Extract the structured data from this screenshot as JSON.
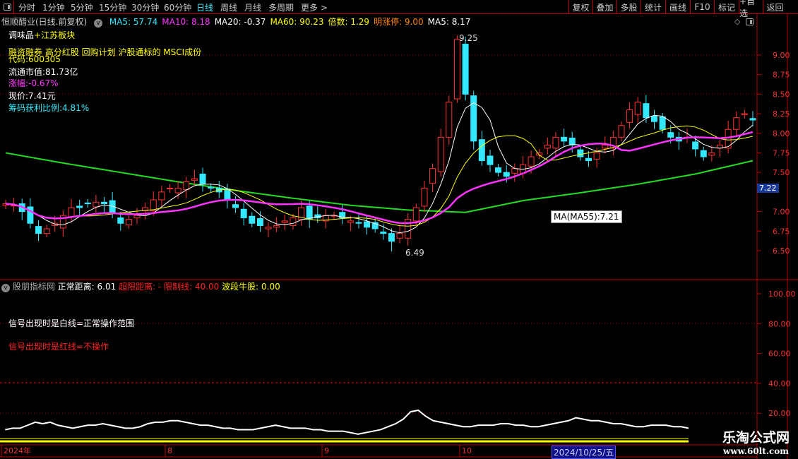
{
  "toolbar": {
    "periods": [
      "分时",
      "1分钟",
      "5分钟",
      "15分钟",
      "30分钟",
      "60分钟",
      "日线",
      "周线",
      "月线",
      "多周期",
      "更多 >"
    ],
    "active_period": "日线",
    "buttons": [
      "复权",
      "叠加",
      "多股",
      "统计",
      "画线",
      "F10",
      "标记",
      "+自选",
      "返回"
    ]
  },
  "header": {
    "title": "恒顺醋业(日线.前复权)",
    "indicators": [
      {
        "label": "MA5: 57.74",
        "color": "#33e8ff"
      },
      {
        "label": "MA10: 8.18",
        "color": "#ff33ff"
      },
      {
        "label": "MA20: -0.37",
        "color": "#ffffff"
      },
      {
        "label": "MA60: 90.23",
        "color": "#ffff00"
      },
      {
        "label": "倍数: 1.29",
        "color": "#ffff00"
      },
      {
        "label": "明涨停: 9.00",
        "color": "#ff8800"
      },
      {
        "label": "MA5: 8.17",
        "color": "#ffffff"
      }
    ]
  },
  "info": {
    "sector_a": "调味品",
    "sector_b": "+江苏板块",
    "concepts": "融资融券 高分红股 回购计划 沪股通标的 MSCI成份",
    "code": "代码:600305",
    "float_cap": "流通市值:81.73亿",
    "change": "涨幅:-0.67%",
    "price": "现价:7.41元",
    "profit_ratio": "筹码获利比例:4.81%"
  },
  "price_axis": {
    "ticks": [
      "9.00",
      "8.75",
      "8.50",
      "8.25",
      "8.00",
      "7.75",
      "7.50",
      "7.00",
      "6.75",
      "6.50"
    ],
    "current": "7.22"
  },
  "annotations": {
    "high": "9.25",
    "low": "6.49",
    "ma55_tip": "MA(MA55):7.21"
  },
  "indicator": {
    "title": "股朋指标网",
    "normal": "正常距离: 6.01",
    "over": "超限距离: -",
    "limit": "限制线: 40.00",
    "wave": "波段牛股: 0.00",
    "note_white": "信号出现时是白线=正常操作范围",
    "note_red": "信号出现时是红线=不操作",
    "ticks": [
      "100.00",
      "80.00",
      "60.00",
      "40.00",
      "20.00"
    ]
  },
  "time_axis": {
    "labels": [
      "2024年",
      "8",
      "9",
      "10"
    ],
    "cursor_date": "2024/10/25/五"
  },
  "watermark": {
    "name": "乐淘公式网",
    "url": "www.60lt.com"
  },
  "colors": {
    "up": "#ff3333",
    "down": "#33e8ff",
    "ma5": "#ffffff",
    "ma10": "#ffff00",
    "ma20": "#ff33ff",
    "ma55": "#22dd22"
  },
  "chart_data": {
    "type": "candlestick",
    "ylim": [
      6.4,
      9.4
    ],
    "closes": [
      7.1,
      7.08,
      7.0,
      6.85,
      6.72,
      6.78,
      6.85,
      6.95,
      7.05,
      7.05,
      7.1,
      7.12,
      7.1,
      6.98,
      6.85,
      6.9,
      6.95,
      7.05,
      7.15,
      7.25,
      7.3,
      7.3,
      7.38,
      7.42,
      7.35,
      7.3,
      7.25,
      7.15,
      7.05,
      6.92,
      6.85,
      6.82,
      6.8,
      6.82,
      6.88,
      6.92,
      7.05,
      6.9,
      6.92,
      6.95,
      6.95,
      6.92,
      6.88,
      6.85,
      6.8,
      6.78,
      6.72,
      6.62,
      6.72,
      6.9,
      7.05,
      7.3,
      7.55,
      7.95,
      8.4,
      9.2,
      8.5,
      7.9,
      7.65,
      7.6,
      7.5,
      7.45,
      7.55,
      7.6,
      7.7,
      7.75,
      7.85,
      7.95,
      7.9,
      7.85,
      7.7,
      7.65,
      7.75,
      7.85,
      7.95,
      8.1,
      8.3,
      8.4,
      8.2,
      8.15,
      8.05,
      7.95,
      7.9,
      7.95,
      7.8,
      7.7,
      7.75,
      7.85,
      8.05,
      8.2,
      8.25,
      8.17
    ],
    "ma55": [
      7.75,
      7.62,
      7.5,
      7.38,
      7.27,
      7.17,
      7.08,
      7.02,
      6.99,
      7.14,
      7.24,
      7.35,
      7.48,
      7.65
    ],
    "indicator_values": [
      9,
      10,
      10,
      12,
      14,
      13,
      14,
      12,
      11,
      10,
      11,
      12,
      12,
      13,
      12,
      11,
      10,
      10,
      11,
      13,
      14,
      14,
      15,
      15,
      14,
      13,
      12,
      12,
      11,
      10,
      10,
      9,
      9,
      9,
      10,
      11,
      12,
      11,
      10,
      10,
      10,
      9,
      9,
      8,
      8,
      8,
      7,
      6,
      7,
      8,
      9,
      11,
      13,
      16,
      21,
      22,
      18,
      15,
      14,
      13,
      12,
      11,
      11,
      12,
      12,
      12,
      13,
      13,
      12,
      12,
      11,
      11,
      12,
      13,
      14,
      15,
      17,
      16,
      15,
      15,
      14,
      13,
      13,
      12,
      11,
      11,
      12,
      12,
      12,
      11,
      11,
      10
    ]
  }
}
